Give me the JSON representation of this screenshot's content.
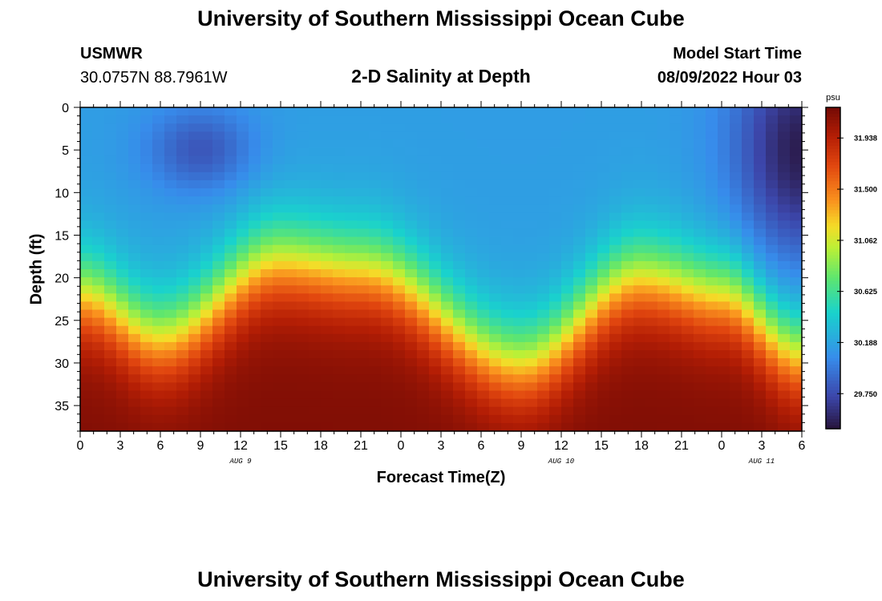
{
  "page": {
    "title_top": "University of Southern Mississippi Ocean Cube",
    "title_bottom": "University of Southern Mississippi Ocean Cube",
    "station_id": "USMWR",
    "station_coords": "30.0757N  88.7961W",
    "model_label": "Model Start Time",
    "model_time": "08/09/2022 Hour 03"
  },
  "chart_data": {
    "type": "heatmap",
    "title": "2-D Salinity at Depth",
    "xlabel": "Forecast Time(Z)",
    "ylabel": "Depth (ft)",
    "x_tick_labels": [
      "0",
      "3",
      "6",
      "9",
      "12",
      "15",
      "18",
      "21",
      "0",
      "3",
      "6",
      "9",
      "12",
      "15",
      "18",
      "21",
      "0",
      "3",
      "6"
    ],
    "x_hours_since_start": [
      0,
      3,
      6,
      9,
      12,
      15,
      18,
      21,
      24,
      27,
      30,
      33,
      36,
      39,
      42,
      45,
      48,
      51,
      54
    ],
    "date_labels": [
      {
        "label": "AUG 9",
        "hour": 12
      },
      {
        "label": "AUG 10",
        "hour": 36
      },
      {
        "label": "AUG 11",
        "hour": 51
      }
    ],
    "y_ticks": [
      0,
      5,
      10,
      15,
      20,
      25,
      30,
      35
    ],
    "ylim": [
      0,
      38
    ],
    "xlim": [
      0,
      54
    ],
    "colorbar": {
      "unit": "psu",
      "tick_labels": [
        "31.938",
        "31.500",
        "31.062",
        "30.625",
        "30.188",
        "29.750"
      ],
      "tick_values": [
        31.938,
        31.5,
        31.062,
        30.625,
        30.188,
        29.75
      ],
      "range": [
        29.45,
        32.2
      ]
    },
    "surface_salinity_approx": 30.15,
    "halocline_depth_ft": [
      {
        "hour": 0,
        "depth": 22
      },
      {
        "hour": 6,
        "depth": 27
      },
      {
        "hour": 15,
        "depth": 18
      },
      {
        "hour": 21,
        "depth": 19
      },
      {
        "hour": 33,
        "depth": 30
      },
      {
        "hour": 42,
        "depth": 20
      },
      {
        "hour": 48,
        "depth": 22
      },
      {
        "hour": 54,
        "depth": 29
      }
    ],
    "deep_salinity_max_approx": 32.15,
    "fresh_pockets": [
      {
        "hour": 9,
        "depth": 5,
        "salinity": 29.8
      },
      {
        "hour": 54,
        "depth": 5,
        "salinity": 29.5
      }
    ]
  }
}
